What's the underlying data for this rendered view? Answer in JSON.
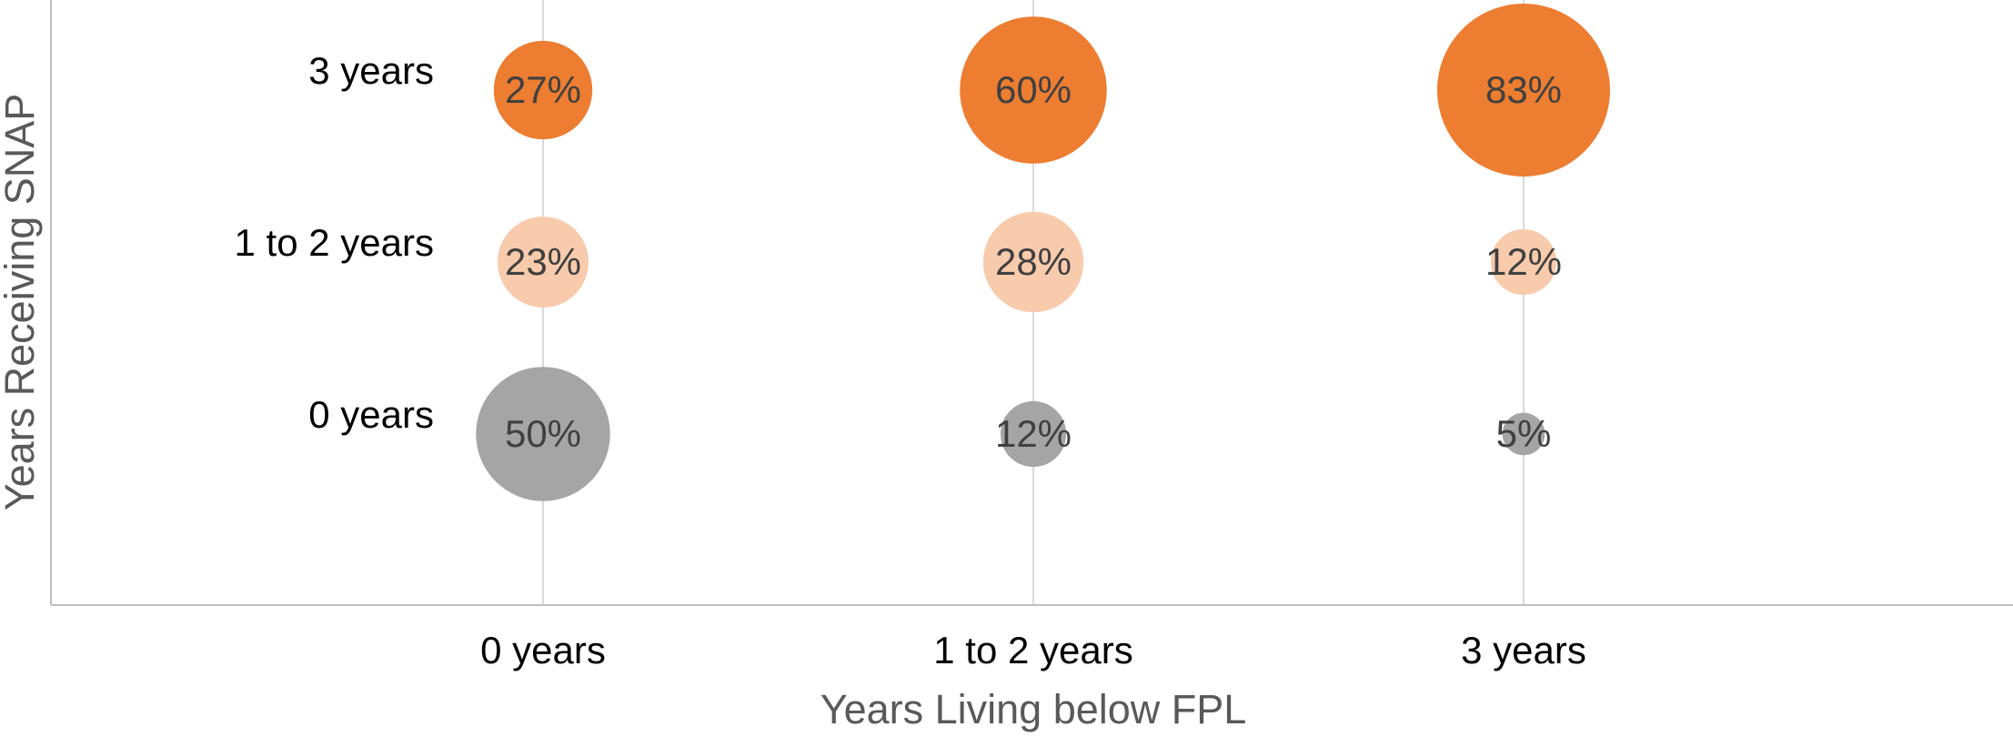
{
  "chart_data": {
    "type": "bubble",
    "x_label": "Years Living below FPL",
    "y_label": "Years Receiving SNAP",
    "x_categories": [
      "0 years",
      "1 to 2 years",
      "3 years"
    ],
    "y_categories": [
      "0 years",
      "1 to 2 years",
      "3 years"
    ],
    "grid": true,
    "series": [
      {
        "color": "#a5a5a5",
        "values": [
          50,
          12,
          5
        ],
        "value_labels": [
          "50%",
          "12%",
          "5%"
        ]
      },
      {
        "color": "#f8cbad",
        "values": [
          23,
          28,
          12
        ],
        "value_labels": [
          "23%",
          "28%",
          "12%"
        ]
      },
      {
        "color": "#ed7d31",
        "values": [
          27,
          60,
          83
        ],
        "value_labels": [
          "27%",
          "60%",
          "83%"
        ]
      }
    ]
  }
}
